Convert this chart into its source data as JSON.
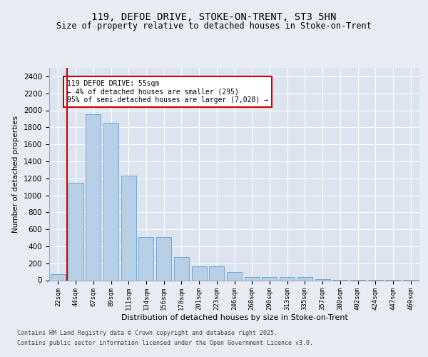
{
  "title_line1": "119, DEFOE DRIVE, STOKE-ON-TRENT, ST3 5HN",
  "title_line2": "Size of property relative to detached houses in Stoke-on-Trent",
  "xlabel": "Distribution of detached houses by size in Stoke-on-Trent",
  "ylabel": "Number of detached properties",
  "categories": [
    "22sqm",
    "44sqm",
    "67sqm",
    "89sqm",
    "111sqm",
    "134sqm",
    "156sqm",
    "178sqm",
    "201sqm",
    "223sqm",
    "246sqm",
    "268sqm",
    "290sqm",
    "313sqm",
    "335sqm",
    "357sqm",
    "380sqm",
    "402sqm",
    "424sqm",
    "447sqm",
    "469sqm"
  ],
  "values": [
    75,
    1150,
    1950,
    1850,
    1230,
    510,
    510,
    270,
    165,
    165,
    95,
    40,
    40,
    35,
    35,
    10,
    5,
    5,
    3,
    2,
    1
  ],
  "bar_color": "#b8cfe8",
  "bar_edge_color": "#6fa8d5",
  "vline_x": 0.5,
  "vline_color": "#cc0000",
  "annotation_text": "119 DEFOE DRIVE: 55sqm\n← 4% of detached houses are smaller (295)\n95% of semi-detached houses are larger (7,028) →",
  "annotation_box_color": "#ffffff",
  "annotation_box_edge": "#cc0000",
  "bg_color": "#e8edf5",
  "plot_bg_color": "#dce4f0",
  "grid_color": "#ffffff",
  "footer_line1": "Contains HM Land Registry data © Crown copyright and database right 2025.",
  "footer_line2": "Contains public sector information licensed under the Open Government Licence v3.0.",
  "ylim": [
    0,
    2500
  ],
  "yticks": [
    0,
    200,
    400,
    600,
    800,
    1000,
    1200,
    1400,
    1600,
    1800,
    2000,
    2200,
    2400
  ]
}
